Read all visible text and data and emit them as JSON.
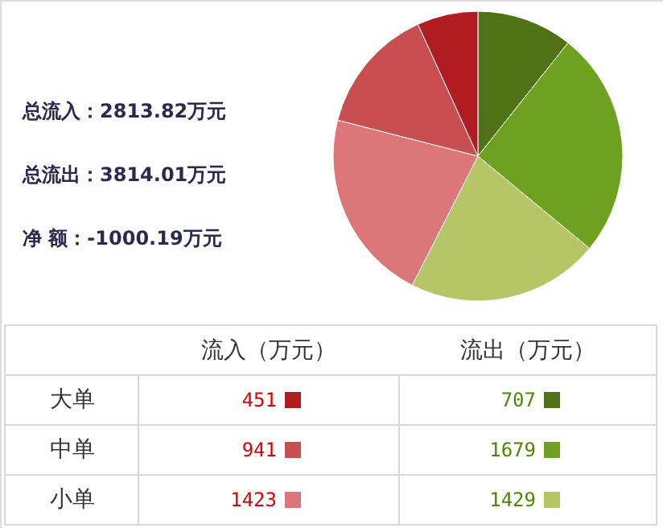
{
  "chart_data": [
    {
      "type": "pie",
      "categories": [
        null,
        null,
        null,
        null,
        null,
        null
      ],
      "values": [
        10.7,
        25.3,
        21.5,
        21.5,
        14.2,
        6.8
      ],
      "colors": [
        "#4e7215",
        "#6fa121",
        "#b6c566",
        "#dd7678",
        "#c84e4f",
        "#b01c20"
      ],
      "annotations": [
        "总流入：2813.82万元",
        "总流出：3814.01万元",
        "净  额：-1000.19万元"
      ]
    },
    {
      "type": "heatmap",
      "categories": [
        "流入（万元）",
        "流出（万元）"
      ],
      "y_categories": [
        "大单",
        "中单",
        "小单"
      ],
      "cells": [
        [
          451,
          707
        ],
        [
          941,
          1679
        ],
        [
          1423,
          1429
        ]
      ],
      "data_labels": true
    }
  ]
}
